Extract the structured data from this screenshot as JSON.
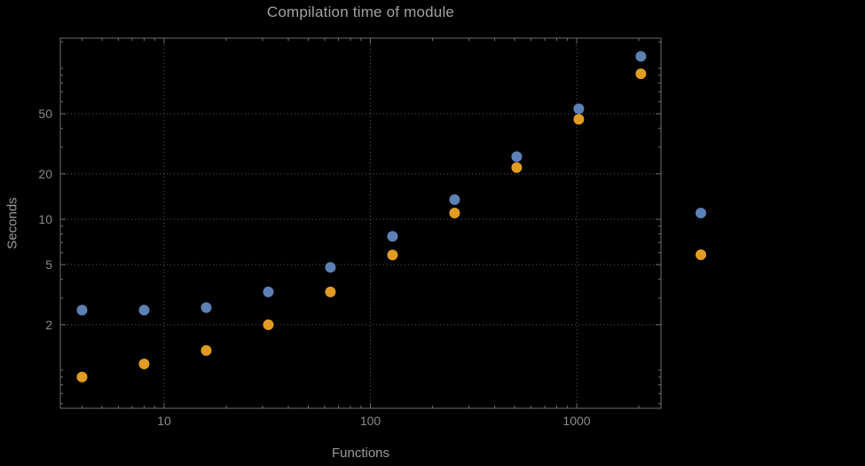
{
  "chart_data": {
    "type": "scatter",
    "title": "Compilation time of module",
    "xlabel": "Functions",
    "ylabel": "Seconds",
    "x_scale": "log",
    "y_scale": "log",
    "xlim": [
      3.2,
      2560
    ],
    "ylim": [
      0.56,
      158
    ],
    "grid": "dotted",
    "x": [
      4,
      8,
      16,
      32,
      64,
      128,
      256,
      512,
      1024,
      2048
    ],
    "series": [
      {
        "name": "series-blue",
        "color": "#5e81b5",
        "values": [
          2.5,
          2.5,
          2.6,
          3.3,
          4.8,
          7.7,
          13.5,
          26,
          54,
          120
        ]
      },
      {
        "name": "series-orange",
        "color": "#e19c24",
        "values": [
          0.9,
          1.1,
          1.35,
          2.0,
          3.3,
          5.8,
          11,
          22,
          46,
          92
        ]
      }
    ],
    "x_ticks": [
      10,
      100,
      1000
    ],
    "y_ticks": [
      2,
      5,
      10,
      20,
      50
    ],
    "x_minor_ticks": [
      4,
      5,
      6,
      7,
      8,
      9,
      20,
      30,
      40,
      50,
      60,
      70,
      80,
      90,
      200,
      300,
      400,
      500,
      600,
      700,
      800,
      900,
      2000
    ],
    "y_minor_ticks": [
      0.6,
      0.7,
      0.8,
      0.9,
      1,
      3,
      4,
      6,
      7,
      8,
      9,
      30,
      40,
      60,
      70,
      80,
      90,
      100,
      150
    ],
    "legend_position": "right-outside",
    "legend": [
      {
        "name": "legend-blue",
        "color": "#5e81b5"
      },
      {
        "name": "legend-orange",
        "color": "#e19c24"
      }
    ],
    "colors": {
      "background": "#000000",
      "frame": "#6e6e6e",
      "grid": "#5a5a5a",
      "title_text": "#a2a2a2",
      "axis_label_text": "#9b9b9b",
      "tick_text": "#8a8a8a"
    }
  }
}
